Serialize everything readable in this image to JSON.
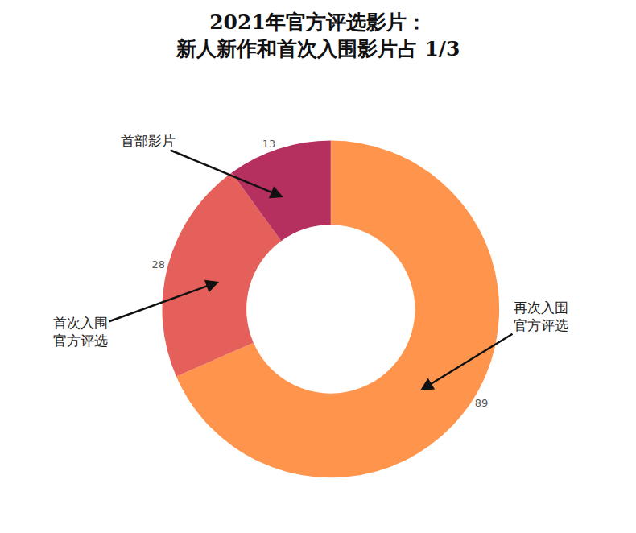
{
  "chart_data": {
    "type": "pie",
    "title": "2021年官方评选影片：\n新人新作和首次入围影片占 1/3",
    "categories": [
      "再次入围官方评选",
      "首次入围官方评选",
      "首部影片"
    ],
    "values": [
      89,
      28,
      13
    ],
    "colors": [
      "#ff944d",
      "#e5605a",
      "#b5305f"
    ],
    "data_labels": true
  }
}
